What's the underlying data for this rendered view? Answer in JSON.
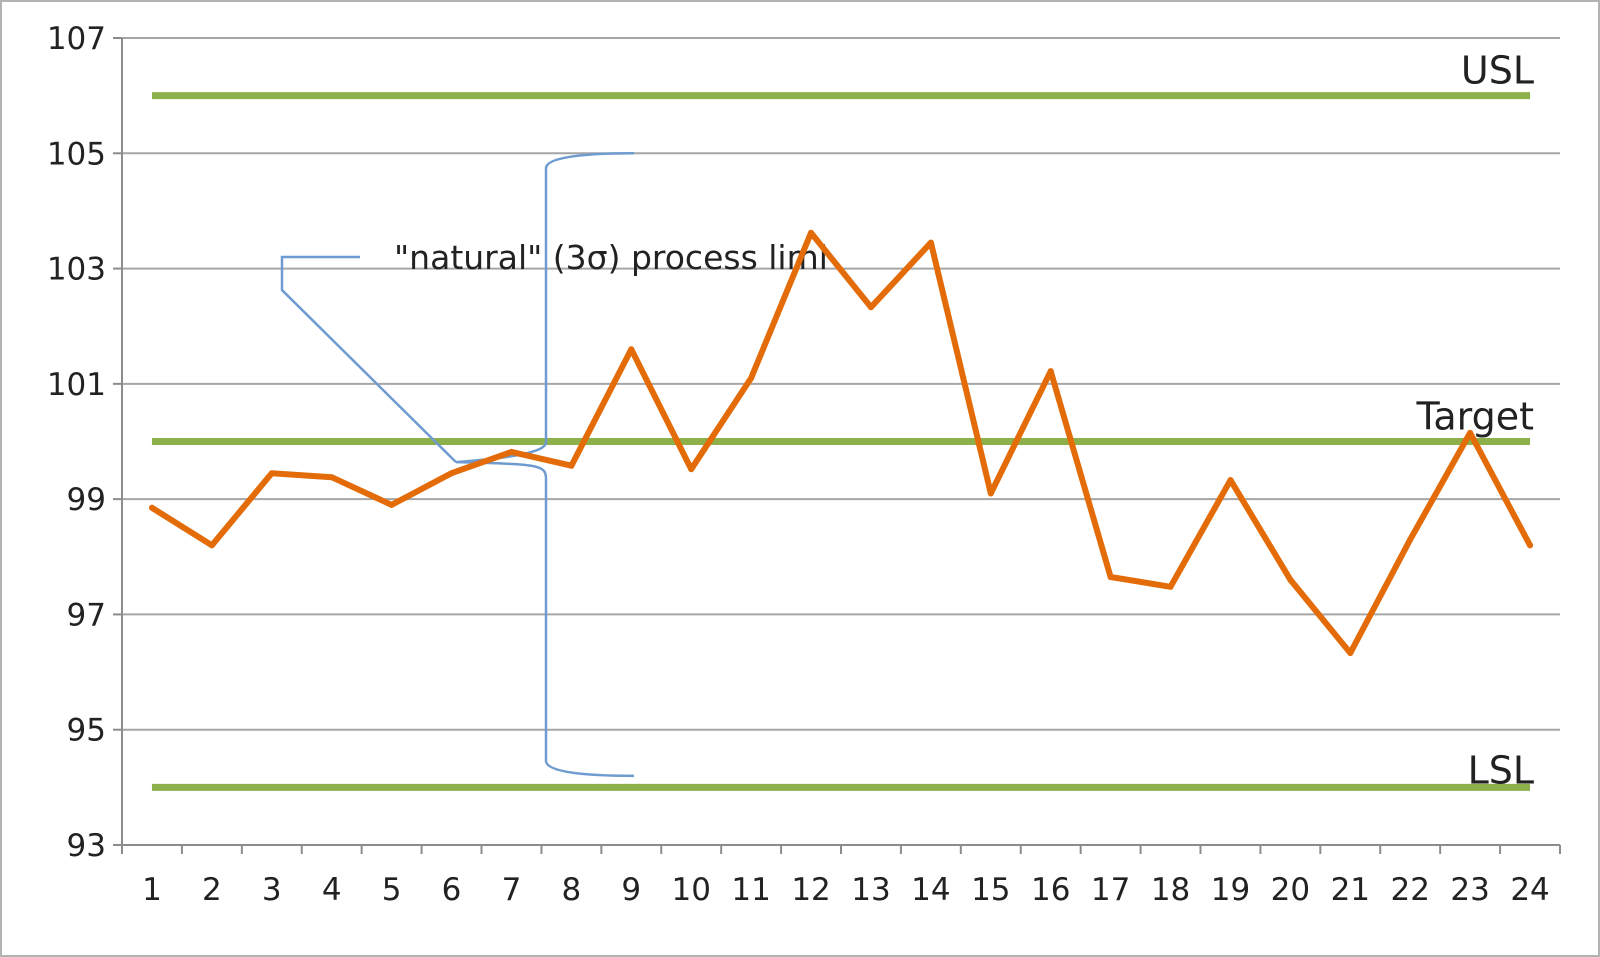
{
  "chart_data": {
    "type": "line",
    "title": "",
    "xlabel": "",
    "ylabel": "",
    "x": [
      1,
      2,
      3,
      4,
      5,
      6,
      7,
      8,
      9,
      10,
      11,
      12,
      13,
      14,
      15,
      16,
      17,
      18,
      19,
      20,
      21,
      22,
      23,
      24
    ],
    "ylim": [
      93,
      107
    ],
    "yticks": [
      93,
      95,
      97,
      99,
      101,
      103,
      105,
      107
    ],
    "grid": true,
    "legend": "none",
    "series": [
      {
        "values": [
          98.85,
          98.2,
          99.45,
          99.38,
          98.9,
          99.45,
          99.82,
          99.58,
          101.6,
          99.52,
          101.1,
          103.62,
          102.33,
          103.45,
          99.1,
          101.22,
          97.65,
          97.48,
          99.33,
          97.6,
          96.33,
          98.3,
          100.15,
          98.2
        ],
        "color": "#e36c09"
      }
    ],
    "reference_lines": [
      {
        "label": "USL",
        "value": 106,
        "color": "#8db04a"
      },
      {
        "label": "Target",
        "value": 100,
        "color": "#8db04a"
      },
      {
        "label": "LSL",
        "value": 94,
        "color": "#8db04a"
      }
    ],
    "annotation": {
      "text": "\"natural\" (3σ) process limi",
      "bracket_range": [
        94.2,
        105.0
      ],
      "color": "#6e9bd0"
    }
  }
}
